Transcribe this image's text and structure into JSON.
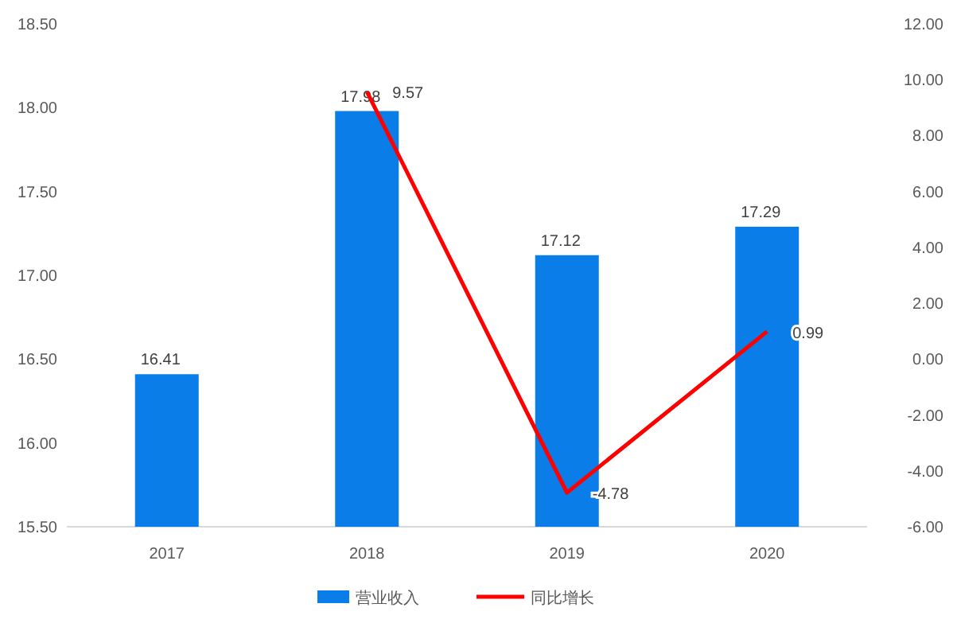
{
  "chart_data": {
    "type": "bar",
    "categories": [
      "2017",
      "2018",
      "2019",
      "2020"
    ],
    "series": [
      {
        "name": "营业收入",
        "color": "#0a7de8",
        "values": [
          16.41,
          17.98,
          17.12,
          17.29
        ]
      },
      {
        "name": "同比增长",
        "type": "line",
        "axis": "y2",
        "color": "#ff0000",
        "values": [
          null,
          9.57,
          -4.78,
          0.99
        ]
      }
    ],
    "ylim": [
      15.5,
      18.5
    ],
    "yticks": [
      {
        "value": 15.5,
        "label": "15.50"
      },
      {
        "value": 16,
        "label": "16.00"
      },
      {
        "value": 16.5,
        "label": "16.50"
      },
      {
        "value": 17,
        "label": "17.00"
      },
      {
        "value": 17.5,
        "label": "17.50"
      },
      {
        "value": 18,
        "label": "18.00"
      },
      {
        "value": 18.5,
        "label": "18.50"
      }
    ],
    "y2lim": [
      -6,
      12
    ],
    "y2ticks": [
      {
        "value": -6,
        "label": "-6.00"
      },
      {
        "value": -4,
        "label": "-4.00"
      },
      {
        "value": -2,
        "label": "-2.00"
      },
      {
        "value": 0,
        "label": "0.00"
      },
      {
        "value": 2,
        "label": "2.00"
      },
      {
        "value": 4,
        "label": "4.00"
      },
      {
        "value": 6,
        "label": "6.00"
      },
      {
        "value": 8,
        "label": "8.00"
      },
      {
        "value": 10,
        "label": "10.00"
      },
      {
        "value": 12,
        "label": "12.00"
      }
    ],
    "data_labels": true,
    "legend": "bottom",
    "marker": "none",
    "line_style": "solid"
  }
}
